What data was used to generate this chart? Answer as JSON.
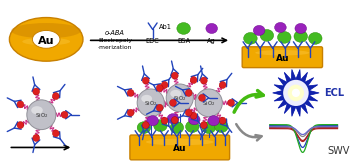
{
  "fig_width": 3.54,
  "fig_height": 1.64,
  "dpi": 100,
  "bg_color": "#ffffff",
  "au_gold": "#F0A800",
  "au_dark": "#C88000",
  "au_text": "Au",
  "sio2_gray": "#C0C0C8",
  "sio2_edge": "#909098",
  "polymer_pink": "#CC3388",
  "qd_red": "#DD2020",
  "ab_blue": "#2244BB",
  "green_blob": "#44BB22",
  "purple_blob": "#9922BB",
  "ecl_blue": "#2233AA",
  "ecl_text": "ECL",
  "swv_text": "SWV"
}
